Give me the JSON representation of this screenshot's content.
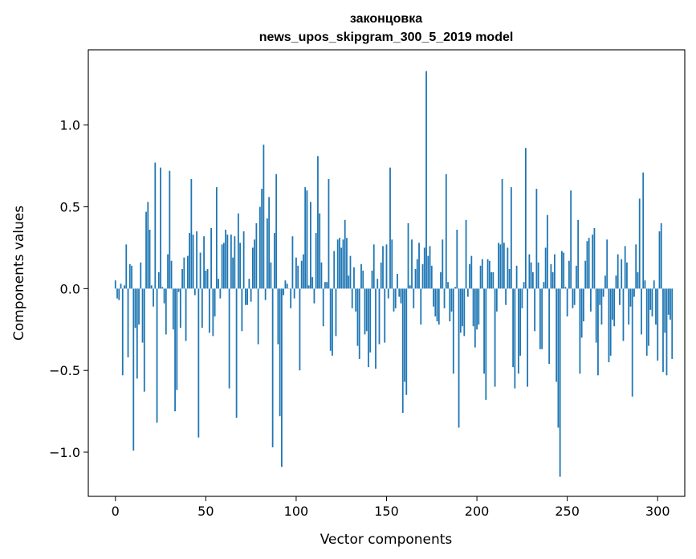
{
  "chart_data": {
    "type": "bar",
    "title": [
      "законцовка",
      "news_upos_skipgram_300_5_2019 model"
    ],
    "xlabel": "Vector components",
    "ylabel": "Components values",
    "xlim": [
      -15,
      315
    ],
    "ylim": [
      -1.27,
      1.46
    ],
    "xticks": [
      0,
      50,
      100,
      150,
      200,
      250,
      300
    ],
    "xtick_labels": [
      "0",
      "50",
      "100",
      "150",
      "200",
      "250",
      "300"
    ],
    "yticks": [
      -1.0,
      -0.5,
      0.0,
      0.5,
      1.0
    ],
    "ytick_labels": [
      "−1.0",
      "−0.5",
      "0.0",
      "0.5",
      "1.0"
    ],
    "bar_color": "#1f77b4",
    "grid": false,
    "legend": "none",
    "values": [
      0.05,
      -0.06,
      -0.07,
      0.03,
      -0.53,
      0.02,
      0.27,
      -0.42,
      0.15,
      0.14,
      -0.99,
      -0.24,
      -0.55,
      -0.22,
      0.16,
      -0.33,
      -0.63,
      0.47,
      0.53,
      0.36,
      0.02,
      -0.11,
      0.77,
      -0.82,
      0.1,
      0.74,
      0.01,
      -0.09,
      -0.28,
      0.21,
      0.72,
      0.17,
      -0.25,
      -0.75,
      -0.62,
      -0.02,
      -0.24,
      0.12,
      0.19,
      -0.32,
      0.2,
      0.34,
      0.67,
      0.33,
      -0.04,
      0.35,
      -0.91,
      0.22,
      -0.24,
      0.32,
      0.11,
      0.12,
      -0.27,
      0.37,
      -0.29,
      -0.17,
      0.62,
      0.06,
      -0.06,
      0.27,
      0.28,
      0.36,
      0.33,
      -0.61,
      0.33,
      0.19,
      0.32,
      -0.79,
      0.46,
      0.28,
      -0.26,
      0.35,
      -0.1,
      -0.1,
      0.06,
      -0.08,
      0.25,
      0.3,
      0.4,
      -0.34,
      0.5,
      0.61,
      0.88,
      -0.07,
      0.43,
      0.56,
      0.16,
      -0.97,
      0.34,
      0.7,
      -0.34,
      -0.78,
      -1.09,
      -0.04,
      0.05,
      0.03,
      0.0,
      -0.12,
      0.32,
      -0.06,
      0.19,
      0.14,
      -0.5,
      0.17,
      0.21,
      0.62,
      0.6,
      0.02,
      0.53,
      0.07,
      -0.09,
      0.34,
      0.81,
      0.46,
      0.16,
      -0.23,
      0.04,
      0.04,
      0.67,
      -0.38,
      -0.41,
      0.23,
      -0.29,
      0.3,
      0.31,
      0.25,
      0.3,
      0.42,
      0.31,
      0.08,
      0.2,
      -0.12,
      0.13,
      -0.14,
      -0.35,
      -0.43,
      0.15,
      0.11,
      -0.28,
      -0.26,
      -0.48,
      -0.39,
      0.11,
      0.27,
      -0.49,
      0.06,
      -0.34,
      0.16,
      0.26,
      -0.33,
      0.27,
      -0.06,
      0.74,
      0.3,
      -0.14,
      -0.12,
      0.09,
      -0.05,
      -0.09,
      -0.76,
      -0.57,
      -0.65,
      0.4,
      0.02,
      0.3,
      -0.12,
      0.12,
      0.18,
      0.28,
      -0.22,
      0.15,
      0.25,
      1.33,
      0.2,
      0.26,
      0.14,
      -0.11,
      -0.17,
      -0.2,
      -0.22,
      0.1,
      0.3,
      -0.12,
      0.7,
      0.04,
      -0.2,
      -0.14,
      -0.52,
      0.01,
      0.36,
      -0.85,
      -0.27,
      -0.23,
      -0.29,
      0.42,
      -0.05,
      0.15,
      0.2,
      -0.23,
      -0.36,
      -0.25,
      -0.22,
      0.14,
      0.18,
      -0.52,
      -0.68,
      0.18,
      0.17,
      0.1,
      0.1,
      -0.6,
      -0.14,
      0.28,
      0.27,
      0.67,
      0.28,
      -0.1,
      0.25,
      0.12,
      0.62,
      -0.48,
      -0.61,
      0.14,
      -0.52,
      -0.41,
      -0.12,
      0.04,
      0.86,
      -0.6,
      0.21,
      0.16,
      0.1,
      -0.26,
      0.61,
      0.16,
      -0.37,
      -0.37,
      0.04,
      0.25,
      0.45,
      -0.46,
      0.15,
      0.1,
      0.21,
      -0.57,
      -0.85,
      -1.15,
      0.23,
      0.22,
      0.01,
      -0.17,
      0.17,
      0.6,
      -0.12,
      -0.1,
      0.14,
      0.42,
      -0.52,
      -0.3,
      -0.2,
      0.17,
      0.29,
      0.31,
      -0.14,
      0.33,
      0.37,
      -0.33,
      -0.53,
      -0.1,
      -0.22,
      -0.05,
      0.08,
      0.3,
      -0.45,
      -0.41,
      -0.19,
      -0.23,
      0.08,
      0.21,
      -0.1,
      0.18,
      -0.32,
      0.26,
      0.16,
      -0.22,
      -0.11,
      -0.66,
      -0.05,
      0.27,
      0.1,
      0.55,
      -0.28,
      0.71,
      0.05,
      -0.41,
      -0.35,
      -0.13,
      -0.17,
      0.05,
      -0.22,
      -0.44,
      0.35,
      0.4,
      -0.51,
      -0.27,
      -0.53,
      -0.16,
      -0.19,
      -0.43
    ]
  }
}
